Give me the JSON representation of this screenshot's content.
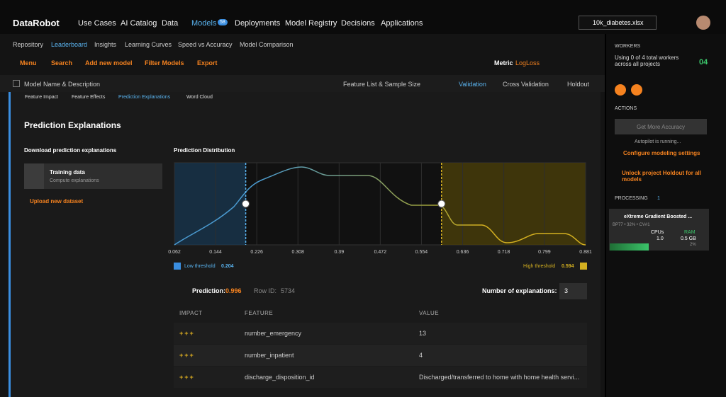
{
  "nav": {
    "logo": "DataRobot",
    "items": [
      "Use Cases",
      "AI Catalog",
      "Data",
      "Models",
      "Deployments",
      "Model Registry",
      "Decisions",
      "Applications"
    ],
    "models_badge": "58",
    "file": "10k_diabetes.xlsx"
  },
  "subnav": [
    "Repository",
    "Leaderboard",
    "Insights",
    "Learning Curves",
    "Speed vs Accuracy",
    "Model Comparison"
  ],
  "toolbar": {
    "items": [
      "Menu",
      "Search",
      "Add new model",
      "Filter Models",
      "Export"
    ],
    "metric_label": "Metric",
    "metric": "LogLoss"
  },
  "columns": {
    "name": "Model Name & Description",
    "feature_list": "Feature List & Sample Size",
    "tabs": [
      "Validation",
      "Cross Validation",
      "Holdout"
    ]
  },
  "insight_tabs": [
    "Feature Impact",
    "Feature Effects",
    "Prediction Explanations",
    "Word Cloud"
  ],
  "title": "Prediction Explanations",
  "download": {
    "heading": "Download prediction explanations",
    "item_title": "Training data",
    "item_sub": "Compute explanations",
    "upload": "Upload new dataset"
  },
  "distribution": {
    "title": "Prediction Distribution",
    "xlim": [
      0.062,
      0.881
    ],
    "xticks": [
      0.062,
      0.144,
      0.226,
      0.308,
      0.39,
      0.472,
      0.554,
      0.636,
      0.718,
      0.799,
      0.881
    ],
    "low_label": "Low threshold",
    "low": 0.204,
    "high_label": "High threshold",
    "high": 0.594
  },
  "prediction": {
    "label": "Prediction:",
    "value": 0.996,
    "row_label": "Row ID:",
    "row_id": 5734,
    "n_label": "Number of explanations:",
    "n": 3
  },
  "table": {
    "headers": [
      "IMPACT",
      "FEATURE",
      "VALUE"
    ],
    "rows": [
      [
        "+++",
        "number_emergency",
        "13"
      ],
      [
        "+++",
        "number_inpatient",
        "4"
      ],
      [
        "+++",
        "discharge_disposition_id",
        "Discharged/transferred to home with home health servi..."
      ]
    ]
  },
  "sidebar": {
    "workers_heading": "WORKERS",
    "workers_text": "Using 0 of 4 total workers across all projects",
    "workers_count": "04",
    "actions": "ACTIONS",
    "button": "Get More Accuracy",
    "autopilot": "Autopilot is running...",
    "configure": "Configure modeling settings",
    "unlock": "Unlock project Holdout for all models",
    "processing": "PROCESSING",
    "processing_count": 1,
    "job": {
      "name": "eXtreme Gradient Boosted ...",
      "meta": "BP77 • 32% • CV#1",
      "cpus_label": "CPUs",
      "cpus": "1.0",
      "ram_label": "RAM",
      "ram": "0.5 GB",
      "pct": "2%"
    }
  }
}
